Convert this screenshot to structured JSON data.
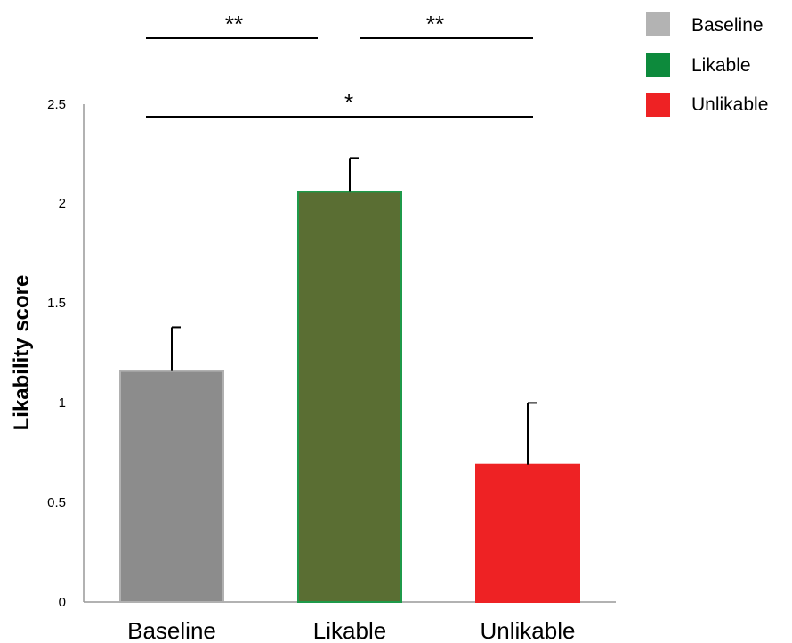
{
  "chart_data": {
    "type": "bar",
    "categories": [
      "Baseline",
      "Likable",
      "Unlikable"
    ],
    "values": [
      1.16,
      2.06,
      0.69
    ],
    "errors": [
      0.22,
      0.17,
      0.31
    ],
    "colors": [
      "#8c8c8c",
      "#5a6e33",
      "#ee2224"
    ],
    "bar_edge_colors": [
      "#b0b0b0",
      "#1f9a4a",
      "#ee2224"
    ],
    "ylabel": "Likability score",
    "ylim": [
      0,
      2.5
    ],
    "yticks": [
      "0",
      "0.5",
      "1",
      "1.5",
      "2",
      "2.5"
    ],
    "grid": false,
    "legend": {
      "placement": "top-right",
      "entries": [
        {
          "label": "Baseline",
          "color": "#b3b3b3"
        },
        {
          "label": "Likable",
          "color": "#0d8a3c"
        },
        {
          "label": "Unlikable",
          "color": "#ee2224"
        }
      ]
    },
    "significance": [
      {
        "from": "Baseline",
        "to": "Likable",
        "label": "**"
      },
      {
        "from": "Likable",
        "to": "Unlikable",
        "label": "**"
      },
      {
        "from": "Baseline",
        "to": "Unlikable",
        "label": "*"
      }
    ]
  }
}
